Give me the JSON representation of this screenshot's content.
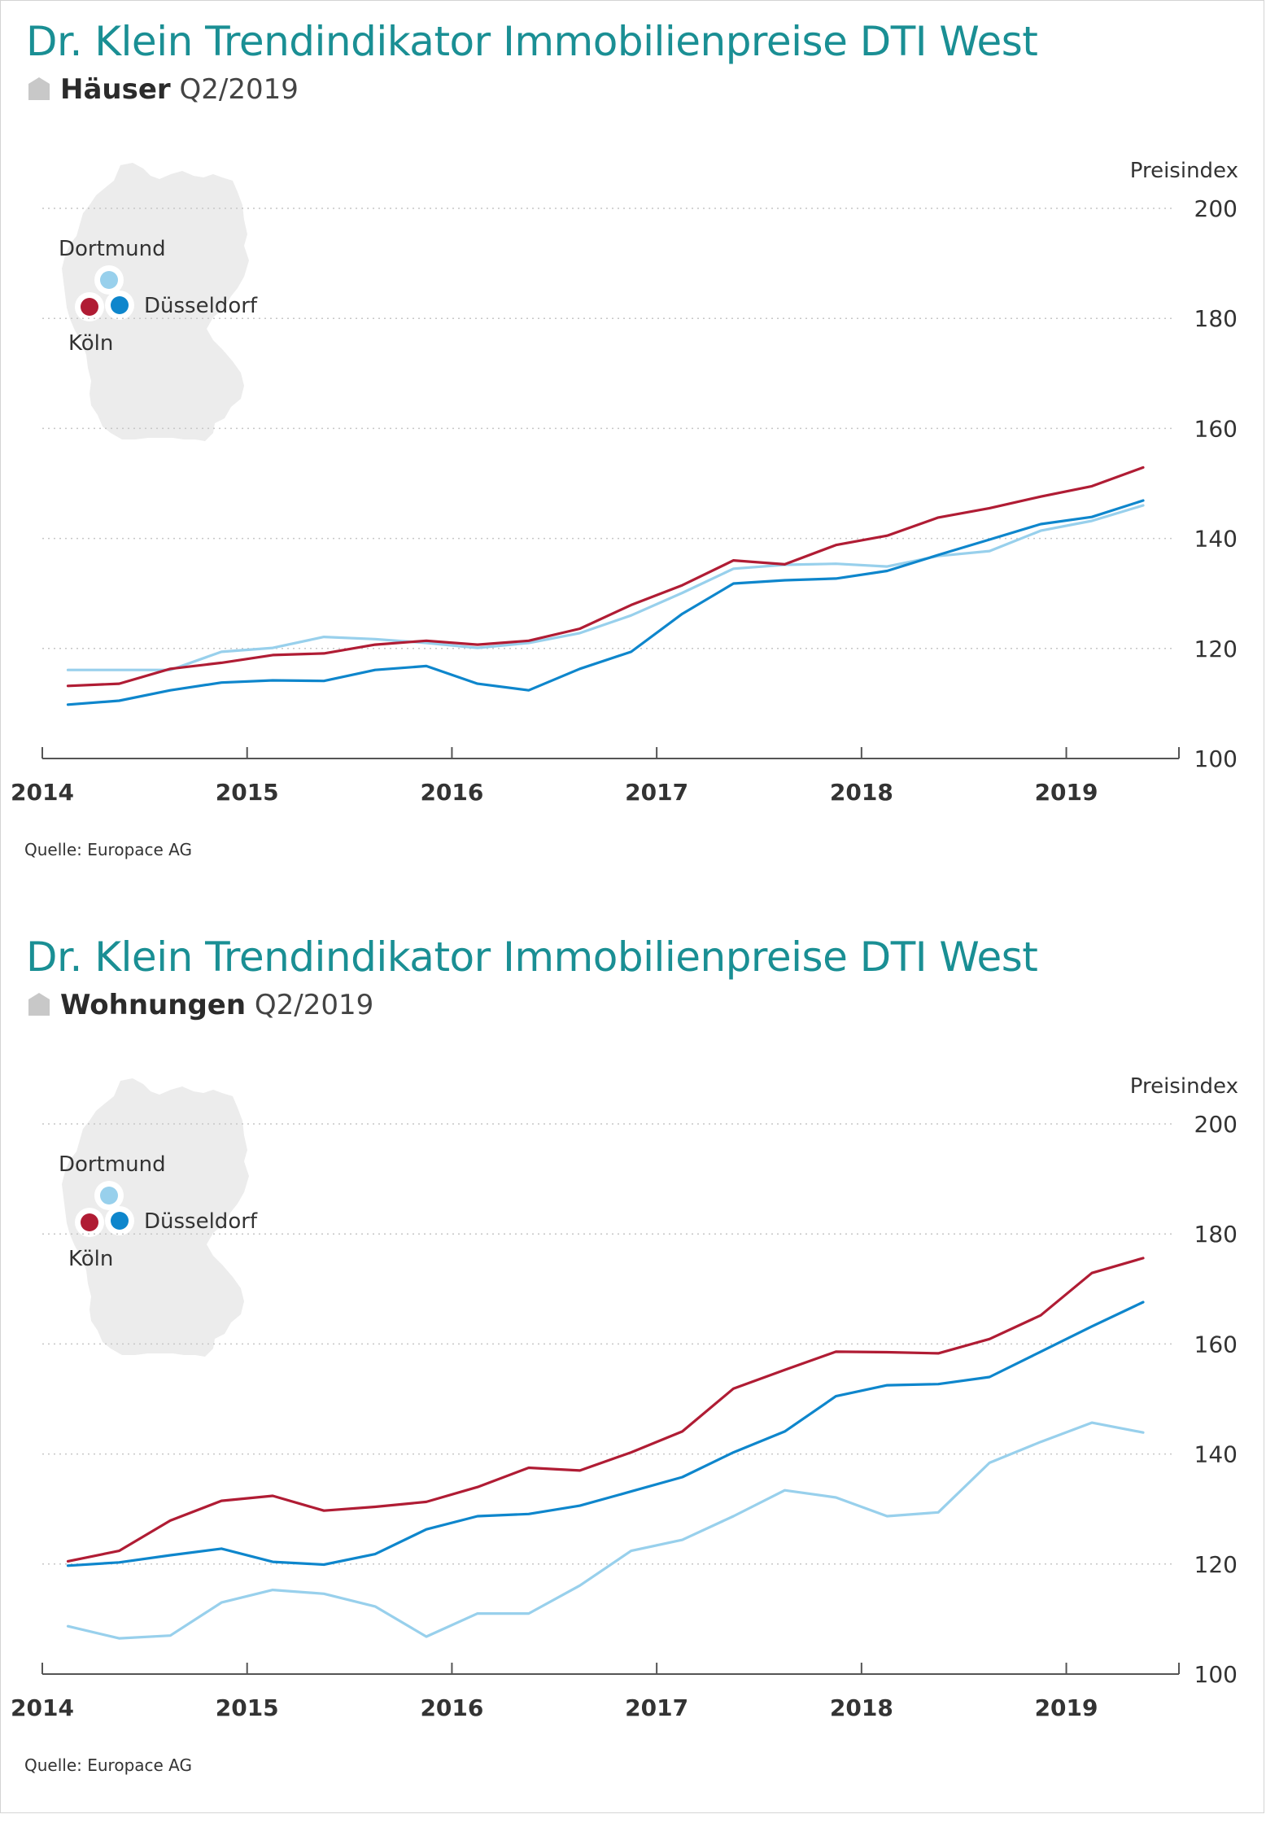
{
  "colors": {
    "title": "#1a8f94",
    "koeln": "#b01c34",
    "duesseldorf": "#0e86cc",
    "dortmund": "#98d0ec",
    "map": "#ececec",
    "grid": "#c6c6c6",
    "axis": "#555555"
  },
  "panels": [
    {
      "title": "Dr. Klein Trendindikator Immobilienpreise DTI West",
      "subtitle_bold": "Häuser",
      "subtitle_period": "Q2/2019",
      "source": "Quelle: Europace AG",
      "map_labels": {
        "dortmund": "Dortmund",
        "duesseldorf": "Düsseldorf",
        "koeln": "Köln"
      }
    },
    {
      "title": "Dr. Klein Trendindikator Immobilienpreise DTI West",
      "subtitle_bold": "Wohnungen",
      "subtitle_period": "Q2/2019",
      "source": "Quelle: Europace AG",
      "map_labels": {
        "dortmund": "Dortmund",
        "duesseldorf": "Düsseldorf",
        "koeln": "Köln"
      }
    }
  ],
  "chart_data": [
    {
      "type": "line",
      "title": "Häuser Q2/2019",
      "ylabel": "Preisindex",
      "ylim": [
        100,
        200
      ],
      "yticks": [
        "100",
        "120",
        "140",
        "160",
        "180",
        "200"
      ],
      "xlim": [
        2014.0,
        2019.55
      ],
      "xticks": [
        "2014",
        "2015",
        "2016",
        "2017",
        "2018",
        "2019"
      ],
      "grid": true,
      "x": [
        2014.125,
        2014.375,
        2014.625,
        2014.875,
        2015.125,
        2015.375,
        2015.625,
        2015.875,
        2016.125,
        2016.375,
        2016.625,
        2016.875,
        2017.125,
        2017.375,
        2017.625,
        2017.875,
        2018.125,
        2018.375,
        2018.625,
        2018.875,
        2019.125,
        2019.375
      ],
      "series": [
        {
          "name": "Köln",
          "values": [
            113.2,
            113.6,
            116.3,
            117.4,
            118.8,
            119.1,
            120.7,
            121.4,
            120.7,
            121.4,
            123.6,
            127.9,
            131.5,
            136.0,
            135.3,
            138.8,
            140.5,
            143.8,
            145.5,
            147.6,
            149.5,
            152.9
          ]
        },
        {
          "name": "Düsseldorf",
          "values": [
            109.8,
            110.5,
            112.4,
            113.8,
            114.2,
            114.1,
            116.1,
            116.8,
            113.6,
            112.4,
            116.3,
            119.4,
            126.3,
            131.8,
            132.4,
            132.7,
            134.1,
            137.0,
            139.8,
            142.6,
            143.9,
            146.9
          ]
        },
        {
          "name": "Dortmund",
          "values": [
            116.1,
            116.1,
            116.1,
            119.4,
            120.1,
            122.1,
            121.7,
            121.0,
            120.1,
            121.0,
            122.8,
            126.0,
            130.1,
            134.5,
            135.2,
            135.4,
            134.9,
            136.8,
            137.7,
            141.4,
            143.2,
            146.0
          ]
        }
      ]
    },
    {
      "type": "line",
      "title": "Wohnungen Q2/2019",
      "ylabel": "Preisindex",
      "ylim": [
        100,
        200
      ],
      "yticks": [
        "100",
        "120",
        "140",
        "160",
        "180",
        "200"
      ],
      "xlim": [
        2014.0,
        2019.55
      ],
      "xticks": [
        "2014",
        "2015",
        "2016",
        "2017",
        "2018",
        "2019"
      ],
      "grid": true,
      "x": [
        2014.125,
        2014.375,
        2014.625,
        2014.875,
        2015.125,
        2015.375,
        2015.625,
        2015.875,
        2016.125,
        2016.375,
        2016.625,
        2016.875,
        2017.125,
        2017.375,
        2017.625,
        2017.875,
        2018.125,
        2018.375,
        2018.625,
        2018.875,
        2019.125,
        2019.375
      ],
      "series": [
        {
          "name": "Köln",
          "values": [
            120.5,
            122.4,
            127.9,
            131.5,
            132.4,
            129.7,
            130.4,
            131.3,
            134.0,
            137.5,
            137.0,
            140.3,
            144.1,
            151.9,
            155.3,
            158.6,
            158.5,
            158.3,
            160.9,
            165.2,
            172.9,
            175.6
          ]
        },
        {
          "name": "Düsseldorf",
          "values": [
            119.7,
            120.3,
            121.6,
            122.8,
            120.4,
            119.9,
            121.8,
            126.3,
            128.7,
            129.1,
            130.6,
            133.2,
            135.8,
            140.3,
            144.1,
            150.5,
            152.5,
            152.7,
            154.0,
            158.6,
            163.2,
            167.6
          ]
        },
        {
          "name": "Dortmund",
          "values": [
            108.7,
            106.5,
            107.0,
            113.0,
            115.3,
            114.6,
            112.3,
            106.8,
            111.0,
            111.0,
            116.1,
            122.4,
            124.4,
            128.7,
            133.4,
            132.1,
            128.7,
            129.4,
            138.4,
            142.2,
            145.7,
            143.9
          ]
        }
      ]
    }
  ]
}
